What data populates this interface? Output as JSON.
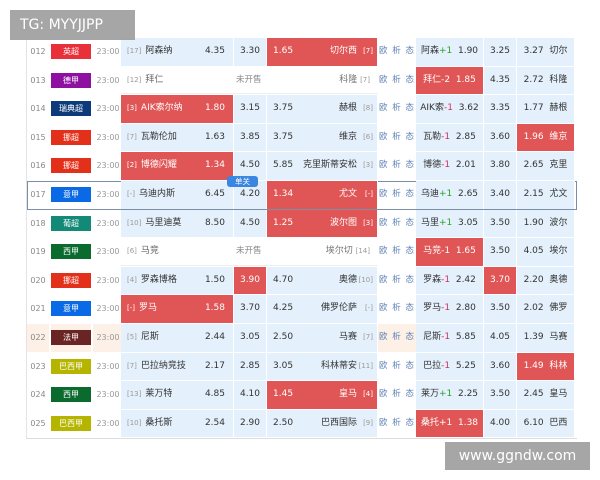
{
  "watermarks": {
    "top_left": "TG: MYYJJPP",
    "bottom_right": "www.ggndw.com"
  },
  "not_on_sale": "未开售",
  "single_tag": "单关",
  "links": "欧 析 态",
  "colors": {
    "highlight": "#e05555",
    "cell": "#e4f0fb"
  },
  "rows": [
    {
      "id": "012",
      "league": "英超",
      "lc": "#e8303a",
      "time": "23:00",
      "hr": "[17]",
      "home": "阿森纳",
      "o1": "4.35",
      "ox": "3.30",
      "o2": "1.65",
      "away": "切尔西",
      "ar": "[7]",
      "hl": "away",
      "rh": "阿森",
      "hc": "+1",
      "r1": "1.90",
      "rx": "3.25",
      "r2": "3.27",
      "ra": "切尔",
      "rhl": ""
    },
    {
      "id": "013",
      "league": "德甲",
      "lc": "#8e10a0",
      "time": "23:00",
      "hr": "[12]",
      "home": "拜仁",
      "ns": true,
      "away": "科隆",
      "ar": "[7]",
      "hl": "",
      "rh": "拜仁",
      "hc": "-2",
      "r1": "1.85",
      "rx": "4.35",
      "r2": "2.72",
      "ra": "科隆",
      "rhl": "home"
    },
    {
      "id": "014",
      "league": "瑞典超",
      "lc": "#0d3a7a",
      "time": "23:00",
      "hr": "[3]",
      "home": "AIK索尔纳",
      "o1": "1.80",
      "ox": "3.15",
      "o2": "3.75",
      "away": "赫根",
      "ar": "[8]",
      "hl": "home",
      "rh": "AIK索",
      "hc": "-1",
      "r1": "3.62",
      "rx": "3.35",
      "r2": "1.77",
      "ra": "赫根",
      "rhl": ""
    },
    {
      "id": "015",
      "league": "挪超",
      "lc": "#e3301a",
      "time": "23:00",
      "hr": "[7]",
      "home": "瓦勒伦加",
      "o1": "1.63",
      "ox": "3.85",
      "o2": "3.75",
      "away": "维京",
      "ar": "[6]",
      "hl": "",
      "rh": "瓦勒",
      "hc": "-1",
      "r1": "2.85",
      "rx": "3.60",
      "r2": "1.96",
      "ra": "维京",
      "rhl": "away"
    },
    {
      "id": "016",
      "league": "挪超",
      "lc": "#e3301a",
      "time": "23:00",
      "hr": "[2]",
      "home": "博德闪耀",
      "o1": "1.34",
      "ox": "4.50",
      "o2": "5.85",
      "away": "克里斯蒂安松",
      "ar": "[3]",
      "hl": "home",
      "rh": "博德",
      "hc": "-1",
      "r1": "2.01",
      "rx": "3.80",
      "r2": "2.65",
      "ra": "克里",
      "rhl": ""
    },
    {
      "id": "017",
      "league": "意甲",
      "lc": "#0a6ae6",
      "time": "23:00",
      "hr": "[-]",
      "home": "乌迪内斯",
      "o1": "6.45",
      "ox": "4.20",
      "o2": "1.34",
      "away": "尤文",
      "ar": "[-]",
      "hl": "away",
      "single": true,
      "rh": "乌迪",
      "hc": "+1",
      "r1": "2.65",
      "rx": "3.40",
      "r2": "2.15",
      "ra": "尤文",
      "rhl": ""
    },
    {
      "id": "018",
      "league": "葡超",
      "lc": "#138a78",
      "time": "23:00",
      "hr": "[10]",
      "home": "马里迪莫",
      "o1": "8.50",
      "ox": "4.50",
      "o2": "1.25",
      "away": "波尔图",
      "ar": "[3]",
      "hl": "away",
      "rh": "马里",
      "hc": "+1",
      "r1": "3.05",
      "rx": "3.50",
      "r2": "1.90",
      "ra": "波尔",
      "rhl": ""
    },
    {
      "id": "019",
      "league": "西甲",
      "lc": "#0b6a2e",
      "time": "23:00",
      "hr": "[6]",
      "home": "马竞",
      "ns": true,
      "away": "埃尔切",
      "ar": "[14]",
      "hl": "",
      "rh": "马竞",
      "hc": "-1",
      "r1": "1.65",
      "rx": "3.50",
      "r2": "4.05",
      "ra": "埃尔",
      "rhl": "home"
    },
    {
      "id": "020",
      "league": "挪超",
      "lc": "#e3301a",
      "time": "23:00",
      "hr": "[4]",
      "home": "罗森博格",
      "o1": "1.50",
      "ox": "3.90",
      "o2": "4.70",
      "away": "奥德",
      "ar": "[10]",
      "hl": "draw",
      "rh": "罗森",
      "hc": "-1",
      "r1": "2.42",
      "rx": "3.70",
      "r2": "2.20",
      "ra": "奥德",
      "rhl": "draw"
    },
    {
      "id": "021",
      "league": "意甲",
      "lc": "#0a6ae6",
      "time": "23:00",
      "hr": "[-]",
      "home": "罗马",
      "o1": "1.58",
      "ox": "3.70",
      "o2": "4.25",
      "away": "佛罗伦萨",
      "ar": "[-]",
      "hl": "home",
      "rh": "罗马",
      "hc": "-1",
      "r1": "2.80",
      "rx": "3.50",
      "r2": "2.02",
      "ra": "佛罗",
      "rhl": ""
    },
    {
      "id": "022",
      "league": "法甲",
      "lc": "#6b2424",
      "time": "23:00",
      "hr": "[5]",
      "home": "尼斯",
      "o1": "2.44",
      "ox": "3.05",
      "o2": "2.50",
      "away": "马赛",
      "ar": "[7]",
      "hl": "",
      "alt": true,
      "rh": "尼斯",
      "hc": "-1",
      "r1": "5.85",
      "rx": "4.05",
      "r2": "1.39",
      "ra": "马赛",
      "rhl": ""
    },
    {
      "id": "023",
      "league": "巴西甲",
      "lc": "#b5b500",
      "time": "23:00",
      "hr": "[7]",
      "home": "巴拉纳竞技",
      "o1": "2.17",
      "ox": "2.85",
      "o2": "3.05",
      "away": "科林蒂安",
      "ar": "[11]",
      "hl": "",
      "rh": "巴拉",
      "hc": "-1",
      "r1": "5.25",
      "rx": "3.60",
      "r2": "1.49",
      "ra": "科林",
      "rhl": "away"
    },
    {
      "id": "024",
      "league": "西甲",
      "lc": "#0b6a2e",
      "time": "23:00",
      "hr": "[13]",
      "home": "莱万特",
      "o1": "4.85",
      "ox": "4.10",
      "o2": "1.45",
      "away": "皇马",
      "ar": "[4]",
      "hl": "away",
      "rh": "莱万",
      "hc": "+1",
      "r1": "2.25",
      "rx": "3.50",
      "r2": "2.45",
      "ra": "皇马",
      "rhl": ""
    },
    {
      "id": "025",
      "league": "巴西甲",
      "lc": "#b5b500",
      "time": "23:00",
      "hr": "[10]",
      "home": "桑托斯",
      "o1": "2.54",
      "ox": "2.90",
      "o2": "2.50",
      "away": "巴西国际",
      "ar": "[9]",
      "hl": "",
      "rh": "桑托",
      "hc": "+1",
      "r1": "1.38",
      "rx": "4.00",
      "r2": "6.10",
      "ra": "巴西",
      "rhl": "home"
    }
  ]
}
